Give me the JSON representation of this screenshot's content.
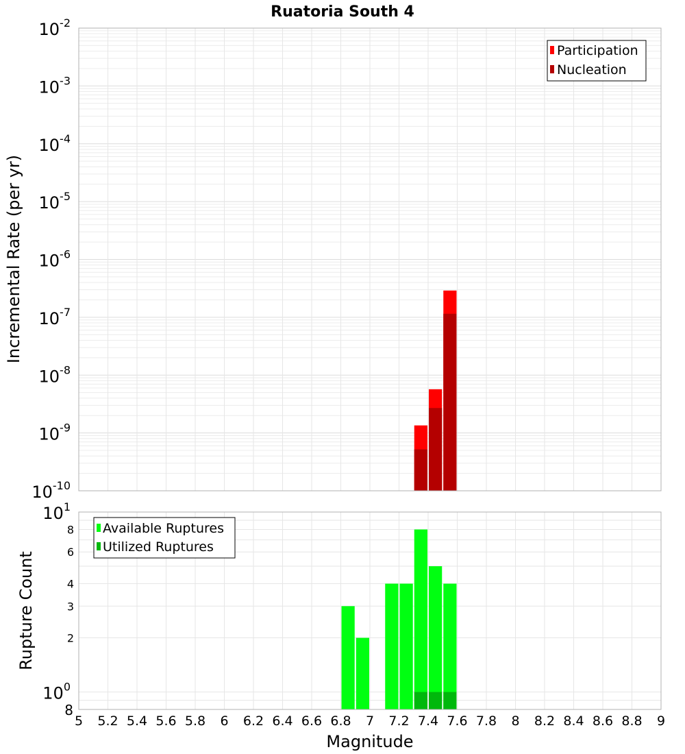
{
  "chart_data": [
    {
      "type": "bar",
      "title": "Ruatoria South 4",
      "xlabel": "Magnitude",
      "ylabel": "Incremental Rate (per yr)",
      "yscale": "log",
      "ylim": [
        1e-10,
        0.01
      ],
      "xlim": [
        5,
        9
      ],
      "bin_width": 0.1,
      "y_tick_labels": [
        {
          "base": "10",
          "exp": "-2"
        },
        {
          "base": "10",
          "exp": "-3"
        },
        {
          "base": "10",
          "exp": "-4"
        },
        {
          "base": "10",
          "exp": "-5"
        },
        {
          "base": "10",
          "exp": "-6"
        },
        {
          "base": "10",
          "exp": "-7"
        },
        {
          "base": "10",
          "exp": "-8"
        },
        {
          "base": "10",
          "exp": "-9"
        },
        {
          "base": "10",
          "exp": "-10"
        }
      ],
      "series": [
        {
          "name": "Participation",
          "color": "#ff0000",
          "x": [
            7.35,
            7.45,
            7.55
          ],
          "values": [
            1.35e-09,
            5.7e-09,
            2.9e-07
          ]
        },
        {
          "name": "Nucleation",
          "color": "#b40000",
          "x": [
            7.35,
            7.45,
            7.55
          ],
          "values": [
            5.2e-10,
            2.7e-09,
            1.15e-07
          ]
        }
      ],
      "legend_position": "top-right"
    },
    {
      "type": "bar",
      "xlabel": "Magnitude",
      "ylabel": "Rupture Count",
      "yscale": "log",
      "ylim": [
        0.8,
        10
      ],
      "xlim": [
        5,
        9
      ],
      "bin_width": 0.1,
      "y_tick_labels": [
        {
          "value": 10,
          "base": "10",
          "exp": "1"
        },
        {
          "value": 8,
          "label": "8"
        },
        {
          "value": 6,
          "label": "6"
        },
        {
          "value": 4,
          "label": "4"
        },
        {
          "value": 3,
          "label": "3"
        },
        {
          "value": 2,
          "label": "2"
        },
        {
          "value": 1,
          "base": "10",
          "exp": "0"
        },
        {
          "value": 0.8,
          "label": "8"
        }
      ],
      "series": [
        {
          "name": "Available Ruptures",
          "color": "#00ff11",
          "x": [
            6.85,
            6.95,
            7.15,
            7.25,
            7.35,
            7.45,
            7.55
          ],
          "values": [
            3,
            2,
            4,
            4,
            8,
            5,
            4
          ]
        },
        {
          "name": "Utilized Ruptures",
          "color": "#00b80c",
          "x": [
            7.35,
            7.45,
            7.55
          ],
          "values": [
            1,
            1,
            1
          ]
        }
      ],
      "legend_position": "top-left"
    }
  ],
  "x_tick_labels": [
    "5",
    "5.2",
    "5.4",
    "5.6",
    "5.8",
    "6",
    "6.2",
    "6.4",
    "6.6",
    "6.8",
    "7",
    "7.2",
    "7.4",
    "7.6",
    "7.8",
    "8",
    "8.2",
    "8.4",
    "8.6",
    "8.8",
    "9"
  ],
  "x_ticks": [
    5,
    5.2,
    5.4,
    5.6,
    5.8,
    6,
    6.2,
    6.4,
    6.6,
    6.8,
    7,
    7.2,
    7.4,
    7.6,
    7.8,
    8,
    8.2,
    8.4,
    8.6,
    8.8,
    9
  ]
}
